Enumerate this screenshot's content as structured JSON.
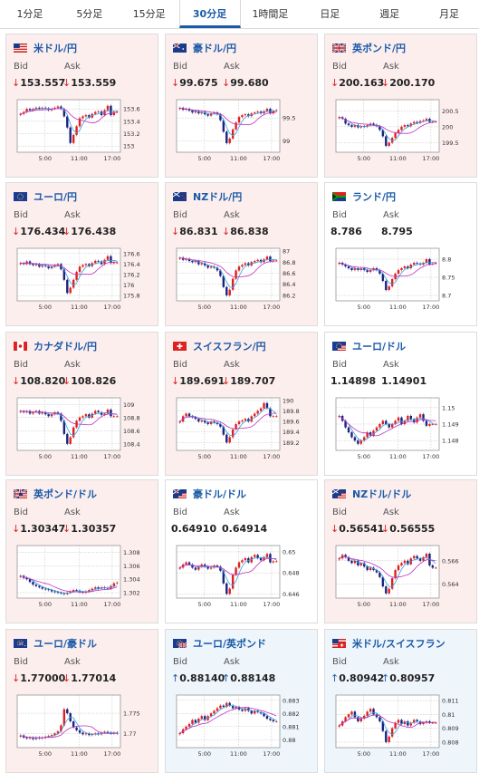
{
  "tabs": [
    {
      "label": "1分足",
      "active": false
    },
    {
      "label": "5分足",
      "active": false
    },
    {
      "label": "15分足",
      "active": false
    },
    {
      "label": "30分足",
      "active": true
    },
    {
      "label": "1時間足",
      "active": false
    },
    {
      "label": "日足",
      "active": false
    },
    {
      "label": "週足",
      "active": false
    },
    {
      "label": "月足",
      "active": false
    }
  ],
  "bid_label": "Bid",
  "ask_label": "Ask",
  "time_labels": [
    "5:00",
    "11:00",
    "17:00"
  ],
  "colors": {
    "down_bg": "#fdeeee",
    "up_bg": "#eef5fb",
    "flat_bg": "#ffffff",
    "title": "#1a5aa8",
    "down_arrow": "#dd2222",
    "up_arrow": "#1a5aa8",
    "candle_up": "#e02020",
    "candle_down": "#1a237e",
    "ma_short": "#3aa0e0",
    "ma_long": "#c030c0"
  },
  "pairs": [
    {
      "name": "米ドル/円",
      "flag": "us",
      "dir": "down",
      "bid": "153.557",
      "ask": "153.559",
      "y_ticks": [
        "153.6",
        "153.4",
        "153.2",
        "153"
      ],
      "ylim": [
        152.9,
        153.75
      ],
      "closes": [
        153.52,
        153.55,
        153.6,
        153.58,
        153.6,
        153.62,
        153.6,
        153.62,
        153.61,
        153.58,
        153.6,
        153.62,
        153.64,
        153.6,
        153.48,
        153.3,
        153.05,
        153.18,
        153.32,
        153.45,
        153.48,
        153.5,
        153.46,
        153.52,
        153.55,
        153.56,
        153.5,
        153.58,
        153.65,
        153.5,
        153.55,
        153.56
      ]
    },
    {
      "name": "豪ドル/円",
      "flag": "au",
      "dir": "down",
      "bid": "99.675",
      "ask": "99.680",
      "y_ticks": [
        "99.5",
        "99"
      ],
      "ylim": [
        98.75,
        99.9
      ],
      "closes": [
        99.72,
        99.68,
        99.7,
        99.66,
        99.62,
        99.65,
        99.6,
        99.63,
        99.58,
        99.55,
        99.6,
        99.62,
        99.58,
        99.45,
        99.2,
        98.95,
        99.05,
        99.25,
        99.4,
        99.52,
        99.56,
        99.58,
        99.54,
        99.6,
        99.62,
        99.64,
        99.6,
        99.65,
        99.7,
        99.6,
        99.66,
        99.67
      ]
    },
    {
      "name": "英ポンド/円",
      "flag": "uk",
      "dir": "down",
      "bid": "200.163",
      "ask": "200.170",
      "y_ticks": [
        "200.5",
        "200",
        "199.5"
      ],
      "ylim": [
        199.2,
        200.85
      ],
      "closes": [
        200.3,
        200.25,
        200.1,
        200.05,
        200.0,
        200.05,
        199.98,
        200.02,
        200.0,
        200.05,
        200.1,
        200.06,
        200.02,
        199.9,
        199.7,
        199.4,
        199.5,
        199.65,
        199.8,
        199.9,
        200.0,
        200.05,
        200.02,
        200.1,
        200.15,
        200.12,
        200.18,
        200.2,
        200.25,
        200.15,
        200.16,
        200.16
      ]
    },
    {
      "name": "ユーロ/円",
      "flag": "eu",
      "dir": "down",
      "bid": "176.434",
      "ask": "176.438",
      "y_ticks": [
        "176.6",
        "176.4",
        "176.2",
        "176",
        "175.8"
      ],
      "ylim": [
        175.7,
        176.7
      ],
      "closes": [
        176.42,
        176.4,
        176.45,
        176.4,
        176.38,
        176.4,
        176.35,
        176.38,
        176.36,
        176.32,
        176.35,
        176.38,
        176.4,
        176.3,
        176.1,
        175.85,
        175.95,
        176.1,
        176.25,
        176.35,
        176.38,
        176.4,
        176.36,
        176.42,
        176.46,
        176.45,
        176.4,
        176.48,
        176.55,
        176.42,
        176.43,
        176.43
      ]
    },
    {
      "name": "NZドル/円",
      "flag": "nz",
      "dir": "down",
      "bid": "86.831",
      "ask": "86.838",
      "y_ticks": [
        "87",
        "86.8",
        "86.6",
        "86.4",
        "86.2"
      ],
      "ylim": [
        86.1,
        87.05
      ],
      "closes": [
        86.88,
        86.84,
        86.86,
        86.82,
        86.8,
        86.82,
        86.76,
        86.78,
        86.74,
        86.7,
        86.72,
        86.7,
        86.65,
        86.55,
        86.35,
        86.2,
        86.3,
        86.5,
        86.65,
        86.72,
        86.75,
        86.78,
        86.74,
        86.8,
        86.82,
        86.84,
        86.8,
        86.85,
        86.9,
        86.82,
        86.83,
        86.83
      ]
    },
    {
      "name": "ランド/円",
      "flag": "za",
      "dir": "flat",
      "bid": "8.786",
      "ask": "8.795",
      "y_ticks": [
        "8.8",
        "8.75",
        "8.7"
      ],
      "ylim": [
        8.685,
        8.83
      ],
      "closes": [
        8.79,
        8.785,
        8.78,
        8.775,
        8.77,
        8.775,
        8.77,
        8.775,
        8.77,
        8.765,
        8.77,
        8.775,
        8.77,
        8.76,
        8.74,
        8.715,
        8.725,
        8.745,
        8.76,
        8.77,
        8.775,
        8.78,
        8.775,
        8.785,
        8.79,
        8.788,
        8.785,
        8.79,
        8.8,
        8.786,
        8.788,
        8.79
      ]
    },
    {
      "name": "カナダドル/円",
      "flag": "ca",
      "dir": "down",
      "bid": "108.820",
      "ask": "108.826",
      "y_ticks": [
        "109",
        "108.8",
        "108.6",
        "108.4"
      ],
      "ylim": [
        108.3,
        109.1
      ],
      "closes": [
        108.9,
        108.88,
        108.9,
        108.86,
        108.88,
        108.9,
        108.86,
        108.88,
        108.85,
        108.82,
        108.85,
        108.88,
        108.86,
        108.75,
        108.55,
        108.4,
        108.5,
        108.65,
        108.75,
        108.8,
        108.82,
        108.85,
        108.8,
        108.86,
        108.9,
        108.88,
        108.84,
        108.86,
        108.92,
        108.82,
        108.82,
        108.82
      ]
    },
    {
      "name": "スイスフラン/円",
      "flag": "ch",
      "dir": "down",
      "bid": "189.691",
      "ask": "189.707",
      "y_ticks": [
        "190",
        "189.8",
        "189.6",
        "189.4",
        "189.2"
      ],
      "ylim": [
        189.05,
        190.05
      ],
      "closes": [
        189.6,
        189.7,
        189.75,
        189.7,
        189.68,
        189.65,
        189.6,
        189.62,
        189.58,
        189.55,
        189.6,
        189.58,
        189.55,
        189.5,
        189.35,
        189.2,
        189.3,
        189.45,
        189.55,
        189.6,
        189.62,
        189.65,
        189.6,
        189.7,
        189.75,
        189.8,
        189.85,
        189.95,
        189.85,
        189.7,
        189.7,
        189.7
      ]
    },
    {
      "name": "ユーロ/ドル",
      "flag": "eu-us",
      "dir": "flat",
      "bid": "1.14898",
      "ask": "1.14901",
      "y_ticks": [
        "1.15",
        "1.149",
        "1.148"
      ],
      "ylim": [
        1.1474,
        1.1506
      ],
      "closes": [
        1.1495,
        1.1492,
        1.1488,
        1.1485,
        1.1482,
        1.148,
        1.1478,
        1.148,
        1.1482,
        1.1485,
        1.1483,
        1.1486,
        1.1488,
        1.149,
        1.1492,
        1.149,
        1.1488,
        1.149,
        1.1492,
        1.1494,
        1.149,
        1.1492,
        1.1495,
        1.1493,
        1.1491,
        1.1494,
        1.1496,
        1.1492,
        1.1489,
        1.149,
        1.149,
        1.149
      ]
    },
    {
      "name": "英ポンド/ドル",
      "flag": "uk-us",
      "dir": "down",
      "bid": "1.30347",
      "ask": "1.30357",
      "y_ticks": [
        "1.308",
        "1.306",
        "1.304",
        "1.302"
      ],
      "ylim": [
        1.3012,
        1.309
      ],
      "closes": [
        1.3045,
        1.3042,
        1.304,
        1.3036,
        1.3032,
        1.303,
        1.3028,
        1.3026,
        1.3025,
        1.3024,
        1.3022,
        1.3021,
        1.302,
        1.3019,
        1.3018,
        1.302,
        1.3022,
        1.3024,
        1.3023,
        1.3021,
        1.302,
        1.3022,
        1.3024,
        1.3026,
        1.3028,
        1.3026,
        1.3028,
        1.3027,
        1.3026,
        1.303,
        1.3034,
        1.3035
      ]
    },
    {
      "name": "豪ドル/ドル",
      "flag": "au-us",
      "dir": "flat",
      "bid": "0.64910",
      "ask": "0.64914",
      "y_ticks": [
        "0.65",
        "0.648",
        "0.646"
      ],
      "ylim": [
        0.6456,
        0.6506
      ],
      "closes": [
        0.6485,
        0.6488,
        0.649,
        0.6488,
        0.6485,
        0.6483,
        0.6486,
        0.6488,
        0.6486,
        0.6484,
        0.6485,
        0.6487,
        0.6486,
        0.6482,
        0.647,
        0.646,
        0.6465,
        0.6478,
        0.6485,
        0.649,
        0.6492,
        0.6494,
        0.649,
        0.6495,
        0.6497,
        0.6494,
        0.6492,
        0.6495,
        0.6498,
        0.649,
        0.6491,
        0.6491
      ]
    },
    {
      "name": "NZドル/ドル",
      "flag": "nz-us",
      "dir": "down",
      "bid": "0.56541",
      "ask": "0.56555",
      "y_ticks": [
        "0.566",
        "0.564"
      ],
      "ylim": [
        0.5628,
        0.5673
      ],
      "closes": [
        0.5662,
        0.5665,
        0.5663,
        0.566,
        0.5658,
        0.566,
        0.5656,
        0.5658,
        0.5655,
        0.5652,
        0.5654,
        0.5652,
        0.565,
        0.5646,
        0.5638,
        0.5632,
        0.5636,
        0.5645,
        0.5652,
        0.5656,
        0.5658,
        0.566,
        0.5657,
        0.5662,
        0.5664,
        0.5662,
        0.566,
        0.5663,
        0.5666,
        0.5656,
        0.5654,
        0.5654
      ]
    },
    {
      "name": "ユーロ/豪ドル",
      "flag": "eu-au",
      "dir": "down",
      "bid": "1.77000",
      "ask": "1.77014",
      "y_ticks": [
        "1.775",
        "1.77"
      ],
      "ylim": [
        1.7665,
        1.7795
      ],
      "closes": [
        1.7695,
        1.769,
        1.7688,
        1.769,
        1.7686,
        1.769,
        1.7688,
        1.769,
        1.7692,
        1.7694,
        1.7696,
        1.77,
        1.7705,
        1.772,
        1.776,
        1.775,
        1.773,
        1.7715,
        1.7708,
        1.7702,
        1.7698,
        1.77,
        1.7696,
        1.7698,
        1.77,
        1.7698,
        1.7702,
        1.7704,
        1.7702,
        1.77,
        1.7702,
        1.77
      ]
    },
    {
      "name": "ユーロ/英ポンド",
      "flag": "eu-uk",
      "dir": "up",
      "bid": "0.88140",
      "ask": "0.88148",
      "y_ticks": [
        "0.883",
        "0.882",
        "0.881",
        "0.88"
      ],
      "ylim": [
        0.8794,
        0.8834
      ],
      "closes": [
        0.8805,
        0.8808,
        0.881,
        0.8812,
        0.8815,
        0.8813,
        0.8816,
        0.8818,
        0.8815,
        0.8818,
        0.882,
        0.8822,
        0.8824,
        0.8826,
        0.8825,
        0.8828,
        0.8826,
        0.8824,
        0.8825,
        0.8823,
        0.8822,
        0.8824,
        0.8822,
        0.882,
        0.8822,
        0.8821,
        0.882,
        0.8818,
        0.8816,
        0.8815,
        0.8814,
        0.8814
      ]
    },
    {
      "name": "米ドル/スイスフラン",
      "flag": "us-ch",
      "dir": "up",
      "bid": "0.80942",
      "ask": "0.80957",
      "y_ticks": [
        "0.811",
        "0.81",
        "0.809",
        "0.808"
      ],
      "ylim": [
        0.8076,
        0.8114
      ],
      "closes": [
        0.8092,
        0.8095,
        0.8098,
        0.81,
        0.8102,
        0.8098,
        0.8095,
        0.8097,
        0.8099,
        0.8102,
        0.8104,
        0.81,
        0.8098,
        0.8095,
        0.8088,
        0.808,
        0.8084,
        0.809,
        0.8094,
        0.8096,
        0.8093,
        0.8095,
        0.8092,
        0.8094,
        0.8096,
        0.8095,
        0.8093,
        0.8094,
        0.8095,
        0.8094,
        0.8094,
        0.8094
      ]
    }
  ]
}
